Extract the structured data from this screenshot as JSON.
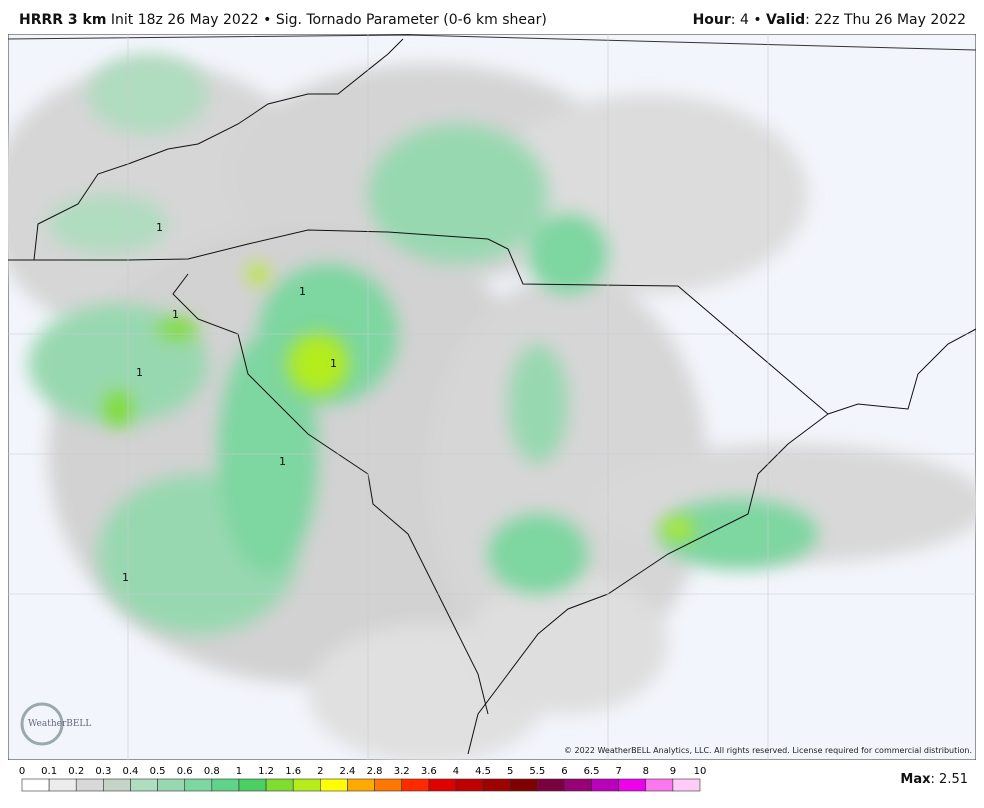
{
  "header": {
    "model": "HRRR 3 km",
    "init": "Init 18z 26 May 2022",
    "separator": "•",
    "product": "Sig. Tornado Parameter (0-6 km shear)",
    "hour_label": "Hour",
    "hour_value": ": 4",
    "valid_label": "Valid",
    "valid_value": ": 22z Thu 26 May 2022"
  },
  "map": {
    "labels": [
      "1",
      "1",
      "1",
      "1",
      "1",
      "1",
      "1"
    ],
    "logo": "WeatherBELL",
    "copyright": "© 2022 WeatherBELL Analytics, LLC. All rights reserved. License required for commercial distribution."
  },
  "legend": {
    "ticks": [
      0,
      0.1,
      0.2,
      0.3,
      0.4,
      0.5,
      0.6,
      0.8,
      1,
      1.2,
      1.6,
      2,
      2.4,
      2.8,
      3.2,
      3.6,
      4,
      4.5,
      5,
      5.5,
      6,
      6.5,
      7,
      8,
      9,
      10
    ],
    "colors": [
      "#ffffff",
      "#ececec",
      "#d8d8d8",
      "#c4d4c8",
      "#b0dcc0",
      "#98d8b0",
      "#7ed6a0",
      "#5fd38a",
      "#4ccf62",
      "#7fdd30",
      "#b4ec1c",
      "#ffff00",
      "#ffaa00",
      "#ff7700",
      "#ff2a00",
      "#e00000",
      "#c00000",
      "#a00000",
      "#800000",
      "#7a0040",
      "#990077",
      "#bb00bb",
      "#ee00ee",
      "#ff77ee",
      "#ffccf6"
    ]
  },
  "max": {
    "label": "Max",
    "value": ": 2.51"
  }
}
